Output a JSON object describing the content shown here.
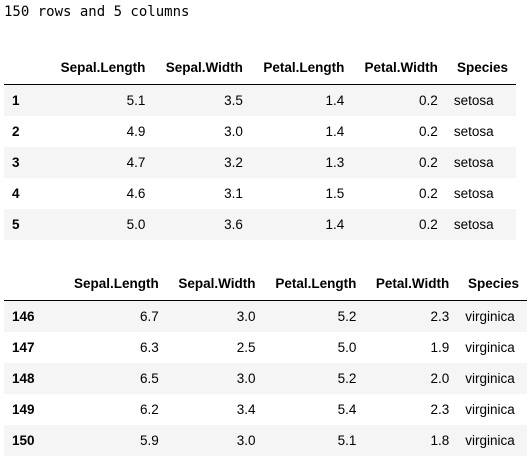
{
  "summary": "150 rows and 5 columns",
  "columns": [
    "Sepal.Length",
    "Sepal.Width",
    "Petal.Length",
    "Petal.Width",
    "Species"
  ],
  "head": {
    "rows": [
      {
        "index": "1",
        "values": [
          "5.1",
          "3.5",
          "1.4",
          "0.2",
          "setosa"
        ]
      },
      {
        "index": "2",
        "values": [
          "4.9",
          "3.0",
          "1.4",
          "0.2",
          "setosa"
        ]
      },
      {
        "index": "3",
        "values": [
          "4.7",
          "3.2",
          "1.3",
          "0.2",
          "setosa"
        ]
      },
      {
        "index": "4",
        "values": [
          "4.6",
          "3.1",
          "1.5",
          "0.2",
          "setosa"
        ]
      },
      {
        "index": "5",
        "values": [
          "5.0",
          "3.6",
          "1.4",
          "0.2",
          "setosa"
        ]
      }
    ]
  },
  "tail": {
    "rows": [
      {
        "index": "146",
        "values": [
          "6.7",
          "3.0",
          "5.2",
          "2.3",
          "virginica"
        ]
      },
      {
        "index": "147",
        "values": [
          "6.3",
          "2.5",
          "5.0",
          "1.9",
          "virginica"
        ]
      },
      {
        "index": "148",
        "values": [
          "6.5",
          "3.0",
          "5.2",
          "2.0",
          "virginica"
        ]
      },
      {
        "index": "149",
        "values": [
          "6.2",
          "3.4",
          "5.4",
          "2.3",
          "virginica"
        ]
      },
      {
        "index": "150",
        "values": [
          "5.9",
          "3.0",
          "5.1",
          "1.8",
          "virginica"
        ]
      }
    ]
  }
}
